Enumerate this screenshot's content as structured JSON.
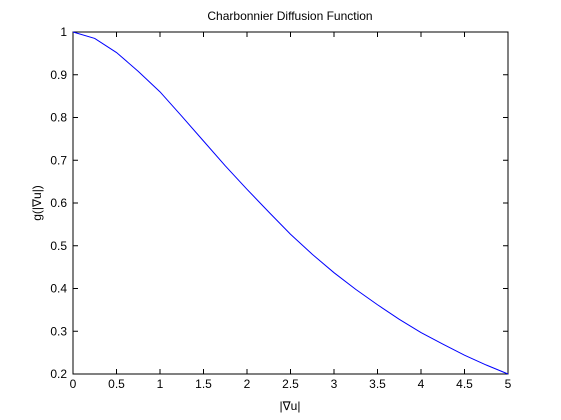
{
  "chart_data": {
    "type": "line",
    "title": "Charbonnier Diffusion Function",
    "xlabel": "|∇u|",
    "ylabel": "g(|∇u|)",
    "xlim": [
      0,
      5
    ],
    "ylim": [
      0.2,
      1
    ],
    "x_ticks": [
      "0",
      "0.5",
      "1",
      "1.5",
      "2",
      "2.5",
      "3",
      "3.5",
      "4",
      "4.5",
      "5"
    ],
    "y_ticks": [
      "0.2",
      "0.3",
      "0.4",
      "0.5",
      "0.6",
      "0.7",
      "0.8",
      "0.9",
      "1"
    ],
    "grid": false,
    "series": [
      {
        "color": "#0000ff",
        "x": [
          0,
          0.25,
          0.5,
          0.75,
          1,
          1.25,
          1.5,
          1.75,
          2,
          2.25,
          2.5,
          2.75,
          3,
          3.25,
          3.5,
          3.75,
          4,
          4.25,
          4.5,
          4.75,
          5
        ],
        "y": [
          1,
          0.985,
          0.952,
          0.908,
          0.86,
          0.803,
          0.745,
          0.687,
          0.632,
          0.579,
          0.527,
          0.48,
          0.437,
          0.398,
          0.362,
          0.328,
          0.297,
          0.27,
          0.244,
          0.221,
          0.2
        ]
      }
    ]
  }
}
